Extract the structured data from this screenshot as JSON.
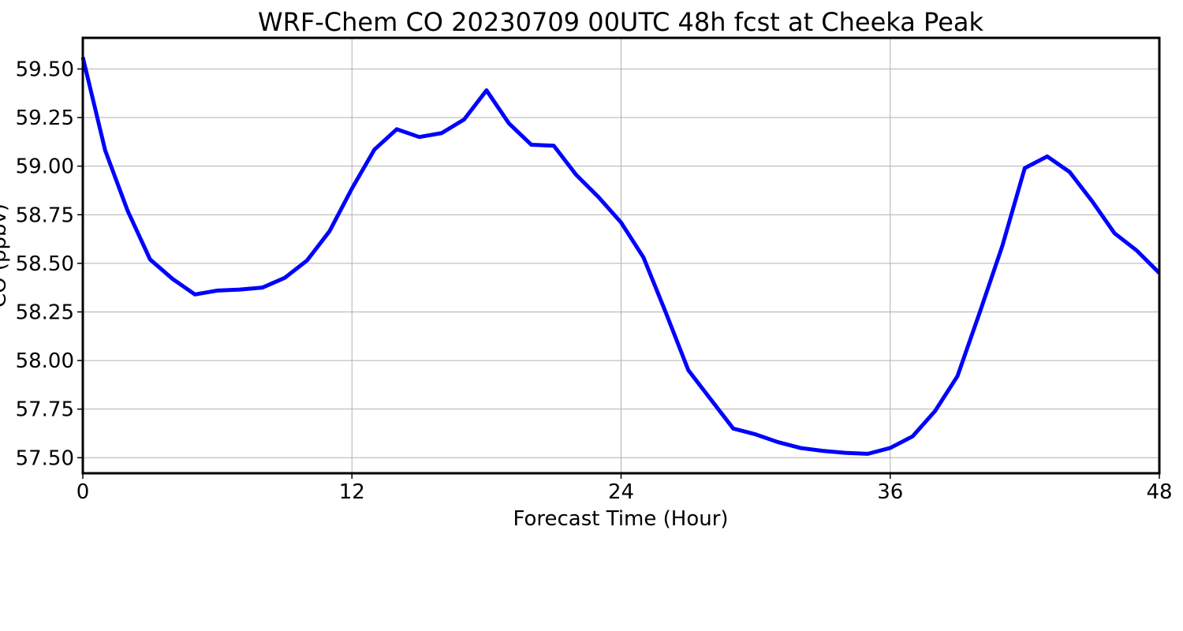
{
  "chart_data": {
    "type": "line",
    "title": "WRF-Chem CO  20230709 00UTC 48h fcst at Cheeka Peak",
    "xlabel": "Forecast Time (Hour)",
    "ylabel": "CO (ppbv)",
    "xlim": [
      0,
      48
    ],
    "ylim": [
      57.42,
      59.66
    ],
    "xticks": [
      0,
      12,
      24,
      36,
      48
    ],
    "yticks": [
      57.5,
      57.75,
      58.0,
      58.25,
      58.5,
      58.75,
      59.0,
      59.25,
      59.5
    ],
    "grid": true,
    "line_color": "#0000ff",
    "series": [
      {
        "x": [
          0,
          1,
          2,
          3,
          4,
          5,
          6,
          7,
          8,
          9,
          10,
          11,
          12,
          13,
          14,
          15,
          16,
          17,
          18,
          19,
          20,
          21,
          22,
          23,
          24,
          25,
          26,
          27,
          28,
          29,
          30,
          31,
          32,
          33,
          34,
          35,
          36,
          37,
          38,
          39,
          40,
          41,
          42,
          43,
          44,
          45,
          46,
          47,
          48
        ],
        "values": [
          59.56,
          59.08,
          58.77,
          58.52,
          58.42,
          58.34,
          58.36,
          58.365,
          58.375,
          58.425,
          58.515,
          58.665,
          58.885,
          59.085,
          59.19,
          59.15,
          59.17,
          59.24,
          59.39,
          59.22,
          59.11,
          59.105,
          58.955,
          58.84,
          58.71,
          58.53,
          58.245,
          57.95,
          57.8,
          57.65,
          57.62,
          57.58,
          57.55,
          57.535,
          57.525,
          57.52,
          57.55,
          57.61,
          57.74,
          57.92,
          58.25,
          58.59,
          58.99,
          59.05,
          58.97,
          58.82,
          58.655,
          58.565,
          58.45
        ]
      }
    ]
  }
}
